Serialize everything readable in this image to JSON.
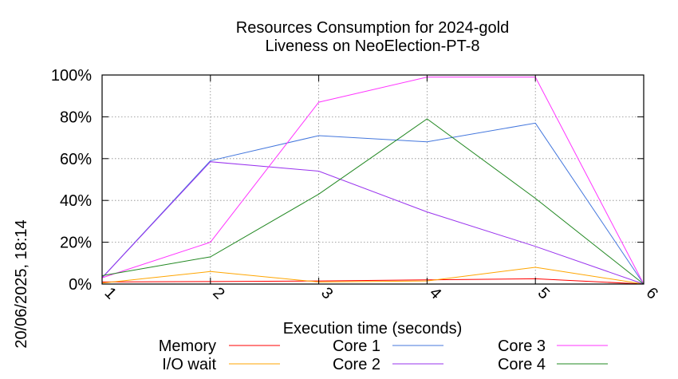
{
  "timestamp": "20/06/2025, 18:14",
  "chart_data": {
    "type": "line",
    "title": [
      "Resources Consumption for 2024-gold",
      "Liveness on NeoElection-PT-8"
    ],
    "xlabel": "Execution time (seconds)",
    "ylabel": "",
    "x": [
      1,
      2,
      3,
      4,
      5,
      6
    ],
    "xlim": [
      1,
      6
    ],
    "ylim": [
      0,
      100
    ],
    "x_ticks": [
      "1",
      "2",
      "3",
      "4",
      "5",
      "6"
    ],
    "y_ticks": [
      "0%",
      "20%",
      "40%",
      "60%",
      "80%",
      "100%"
    ],
    "y_tick_values": [
      0,
      20,
      40,
      60,
      80,
      100
    ],
    "grid": true,
    "legend_position": "bottom",
    "series": [
      {
        "name": "Memory",
        "color": "#ff0000",
        "values": [
          1,
          1.2,
          1.5,
          2,
          2.5,
          0
        ]
      },
      {
        "name": "I/O wait",
        "color": "#ffa500",
        "values": [
          0.5,
          6,
          1,
          1.5,
          8,
          0
        ]
      },
      {
        "name": "Core 1",
        "color": "#4477dd",
        "values": [
          3,
          59,
          71,
          68,
          77,
          0
        ]
      },
      {
        "name": "Core 2",
        "color": "#9933ee",
        "values": [
          3,
          58.5,
          54,
          34.5,
          18,
          0
        ]
      },
      {
        "name": "Core 3",
        "color": "#ff33ff",
        "values": [
          3,
          20,
          87,
          99,
          99,
          0
        ]
      },
      {
        "name": "Core 4",
        "color": "#228822",
        "values": [
          4,
          13,
          43,
          79,
          41,
          0
        ]
      }
    ]
  }
}
